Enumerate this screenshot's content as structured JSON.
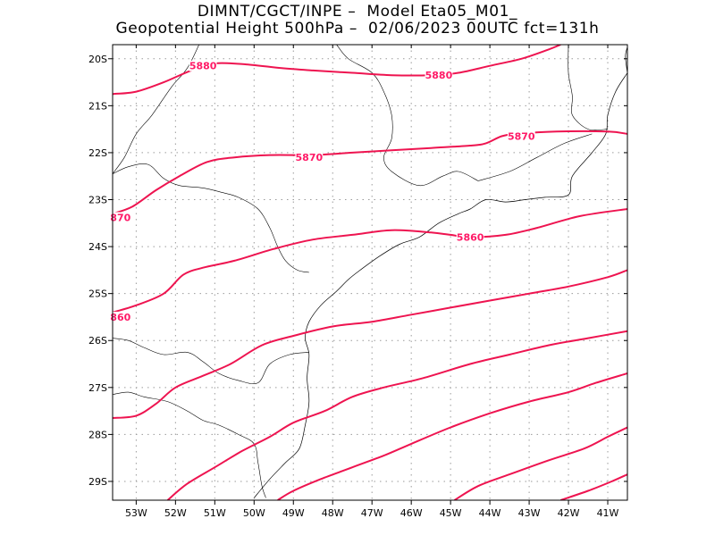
{
  "header": {
    "line1": "DIMNT/CGCT/INPE –  Model Eta05_M01_",
    "line2": "Geopotential Height 500hPa –  02/06/2023 00UTC fct=131h"
  },
  "colors": {
    "contour": "#ee1450",
    "label": "#ff1966",
    "coast": "#000000",
    "grid": "#9a9a9a"
  },
  "chart_data": {
    "type": "contour-map",
    "variable": "Geopotential Height",
    "level": "500hPa",
    "lon_range": [
      -53.6,
      -40.5
    ],
    "lat_range": [
      -29.4,
      -19.7
    ],
    "grid": true,
    "x_ticks": [
      {
        "value": -53,
        "label": "53W"
      },
      {
        "value": -52,
        "label": "52W"
      },
      {
        "value": -51,
        "label": "51W"
      },
      {
        "value": -50,
        "label": "50W"
      },
      {
        "value": -49,
        "label": "49W"
      },
      {
        "value": -48,
        "label": "48W"
      },
      {
        "value": -47,
        "label": "47W"
      },
      {
        "value": -46,
        "label": "46W"
      },
      {
        "value": -45,
        "label": "45W"
      },
      {
        "value": -44,
        "label": "44W"
      },
      {
        "value": -43,
        "label": "43W"
      },
      {
        "value": -42,
        "label": "42W"
      },
      {
        "value": -41,
        "label": "41W"
      }
    ],
    "y_ticks": [
      {
        "value": -20,
        "label": "20S"
      },
      {
        "value": -21,
        "label": "21S"
      },
      {
        "value": -22,
        "label": "22S"
      },
      {
        "value": -23,
        "label": "23S"
      },
      {
        "value": -24,
        "label": "24S"
      },
      {
        "value": -25,
        "label": "25S"
      },
      {
        "value": -26,
        "label": "26S"
      },
      {
        "value": -27,
        "label": "27S"
      },
      {
        "value": -28,
        "label": "28S"
      },
      {
        "value": -29,
        "label": "29S"
      }
    ],
    "contour_labels": [
      {
        "text": "5880",
        "lon": -51.3,
        "lat": -20.15
      },
      {
        "text": "5880",
        "lon": -45.3,
        "lat": -20.35
      },
      {
        "text": "5870",
        "lon": -43.2,
        "lat": -21.65
      },
      {
        "text": "5870",
        "lon": -48.6,
        "lat": -22.1
      },
      {
        "text": "870",
        "lon": -53.4,
        "lat": -23.38
      },
      {
        "text": "5860",
        "lon": -44.5,
        "lat": -23.8
      },
      {
        "text": "860",
        "lon": -53.4,
        "lat": -25.5
      }
    ],
    "contours": [
      [
        [
          -53.6,
          -20.75
        ],
        [
          -53.0,
          -20.7
        ],
        [
          -52.3,
          -20.5
        ],
        [
          -51.6,
          -20.25
        ],
        [
          -51.0,
          -20.1
        ],
        [
          -50.2,
          -20.12
        ],
        [
          -49.3,
          -20.2
        ],
        [
          -48.5,
          -20.25
        ],
        [
          -47.5,
          -20.3
        ],
        [
          -46.5,
          -20.35
        ],
        [
          -45.5,
          -20.35
        ],
        [
          -44.8,
          -20.3
        ],
        [
          -44.0,
          -20.15
        ],
        [
          -43.2,
          -20.0
        ],
        [
          -42.5,
          -19.8
        ],
        [
          -42.2,
          -19.7
        ]
      ],
      [
        [
          -53.6,
          -23.3
        ],
        [
          -53.1,
          -23.15
        ],
        [
          -52.5,
          -22.8
        ],
        [
          -51.9,
          -22.5
        ],
        [
          -51.2,
          -22.2
        ],
        [
          -50.5,
          -22.1
        ],
        [
          -49.6,
          -22.05
        ],
        [
          -48.5,
          -22.05
        ],
        [
          -47.5,
          -22.0
        ],
        [
          -46.5,
          -21.95
        ],
        [
          -45.5,
          -21.9
        ],
        [
          -44.5,
          -21.85
        ],
        [
          -44.1,
          -21.8
        ],
        [
          -43.7,
          -21.65
        ],
        [
          -43.3,
          -21.6
        ],
        [
          -42.3,
          -21.55
        ],
        [
          -41.0,
          -21.55
        ],
        [
          -40.5,
          -21.6
        ]
      ],
      [
        [
          -53.6,
          -25.4
        ],
        [
          -53.0,
          -25.25
        ],
        [
          -52.3,
          -25.0
        ],
        [
          -51.8,
          -24.6
        ],
        [
          -51.3,
          -24.45
        ],
        [
          -50.5,
          -24.3
        ],
        [
          -49.5,
          -24.05
        ],
        [
          -48.5,
          -23.85
        ],
        [
          -47.5,
          -23.75
        ],
        [
          -46.5,
          -23.65
        ],
        [
          -45.5,
          -23.7
        ],
        [
          -45.0,
          -23.75
        ],
        [
          -44.5,
          -23.8
        ],
        [
          -43.6,
          -23.75
        ],
        [
          -42.8,
          -23.6
        ],
        [
          -41.7,
          -23.35
        ],
        [
          -40.5,
          -23.2
        ]
      ],
      [
        [
          -53.6,
          -27.65
        ],
        [
          -53.0,
          -27.6
        ],
        [
          -52.5,
          -27.35
        ],
        [
          -52.0,
          -27.0
        ],
        [
          -51.3,
          -26.75
        ],
        [
          -50.6,
          -26.5
        ],
        [
          -49.8,
          -26.1
        ],
        [
          -49.0,
          -25.9
        ],
        [
          -48.0,
          -25.7
        ],
        [
          -47.0,
          -25.6
        ],
        [
          -46.0,
          -25.45
        ],
        [
          -45.0,
          -25.3
        ],
        [
          -44.0,
          -25.15
        ],
        [
          -43.0,
          -25.0
        ],
        [
          -42.0,
          -24.85
        ],
        [
          -41.0,
          -24.65
        ],
        [
          -40.5,
          -24.5
        ]
      ],
      [
        [
          -52.2,
          -29.4
        ],
        [
          -51.7,
          -29.05
        ],
        [
          -51.0,
          -28.7
        ],
        [
          -50.3,
          -28.35
        ],
        [
          -49.6,
          -28.05
        ],
        [
          -49.0,
          -27.75
        ],
        [
          -48.2,
          -27.5
        ],
        [
          -47.5,
          -27.2
        ],
        [
          -46.7,
          -27.0
        ],
        [
          -45.7,
          -26.8
        ],
        [
          -44.5,
          -26.5
        ],
        [
          -43.5,
          -26.3
        ],
        [
          -42.5,
          -26.1
        ],
        [
          -41.5,
          -25.95
        ],
        [
          -40.5,
          -25.8
        ]
      ],
      [
        [
          -49.4,
          -29.4
        ],
        [
          -49.0,
          -29.2
        ],
        [
          -48.3,
          -28.95
        ],
        [
          -47.5,
          -28.7
        ],
        [
          -46.7,
          -28.45
        ],
        [
          -46.0,
          -28.2
        ],
        [
          -45.0,
          -27.85
        ],
        [
          -44.0,
          -27.55
        ],
        [
          -43.0,
          -27.3
        ],
        [
          -42.0,
          -27.1
        ],
        [
          -41.3,
          -26.9
        ],
        [
          -40.5,
          -26.7
        ]
      ],
      [
        [
          -44.9,
          -29.4
        ],
        [
          -44.3,
          -29.1
        ],
        [
          -43.5,
          -28.85
        ],
        [
          -42.5,
          -28.55
        ],
        [
          -41.6,
          -28.3
        ],
        [
          -41.0,
          -28.05
        ],
        [
          -40.5,
          -27.85
        ]
      ],
      [
        [
          -42.2,
          -29.4
        ],
        [
          -41.5,
          -29.2
        ],
        [
          -40.9,
          -29.0
        ],
        [
          -40.5,
          -28.85
        ]
      ]
    ],
    "borders": [
      [
        [
          -53.6,
          -22.45
        ],
        [
          -53.2,
          -22.3
        ],
        [
          -52.7,
          -22.25
        ],
        [
          -52.3,
          -22.55
        ],
        [
          -51.9,
          -22.7
        ],
        [
          -51.3,
          -22.75
        ],
        [
          -50.8,
          -22.85
        ],
        [
          -50.4,
          -22.95
        ],
        [
          -49.9,
          -23.2
        ],
        [
          -49.6,
          -23.6
        ],
        [
          -49.4,
          -24.0
        ],
        [
          -49.2,
          -24.3
        ],
        [
          -48.9,
          -24.5
        ],
        [
          -48.6,
          -24.55
        ]
      ],
      [
        [
          -53.6,
          -25.95
        ],
        [
          -53.2,
          -26.0
        ],
        [
          -52.8,
          -26.15
        ],
        [
          -52.3,
          -26.3
        ],
        [
          -51.7,
          -26.25
        ],
        [
          -51.3,
          -26.45
        ],
        [
          -50.9,
          -26.7
        ],
        [
          -50.4,
          -26.85
        ],
        [
          -49.9,
          -26.9
        ],
        [
          -49.6,
          -26.5
        ],
        [
          -49.1,
          -26.3
        ],
        [
          -48.6,
          -26.25
        ]
      ],
      [
        [
          -53.6,
          -27.15
        ],
        [
          -53.2,
          -27.1
        ],
        [
          -52.8,
          -27.2
        ],
        [
          -52.2,
          -27.3
        ],
        [
          -51.7,
          -27.5
        ],
        [
          -51.3,
          -27.7
        ],
        [
          -50.9,
          -27.8
        ],
        [
          -50.4,
          -28.0
        ],
        [
          -50.0,
          -28.2
        ],
        [
          -49.9,
          -28.6
        ],
        [
          -49.8,
          -29.1
        ],
        [
          -49.7,
          -29.35
        ]
      ],
      [
        [
          -51.4,
          -19.7
        ],
        [
          -51.7,
          -20.2
        ],
        [
          -52.1,
          -20.6
        ],
        [
          -52.6,
          -21.2
        ],
        [
          -53.0,
          -21.6
        ],
        [
          -53.3,
          -22.1
        ],
        [
          -53.6,
          -22.45
        ]
      ],
      [
        [
          -47.9,
          -19.7
        ],
        [
          -47.6,
          -20.0
        ],
        [
          -47.0,
          -20.3
        ],
        [
          -46.7,
          -20.7
        ],
        [
          -46.5,
          -21.2
        ],
        [
          -46.5,
          -21.7
        ],
        [
          -46.7,
          -22.1
        ],
        [
          -46.5,
          -22.4
        ],
        [
          -45.8,
          -22.7
        ],
        [
          -45.2,
          -22.5
        ],
        [
          -44.8,
          -22.4
        ],
        [
          -44.3,
          -22.6
        ]
      ],
      [
        [
          -42.0,
          -19.7
        ],
        [
          -42.0,
          -20.3
        ],
        [
          -41.9,
          -20.8
        ],
        [
          -41.9,
          -21.2
        ],
        [
          -41.5,
          -21.5
        ],
        [
          -41.0,
          -21.5
        ]
      ],
      [
        [
          -44.3,
          -22.6
        ],
        [
          -43.5,
          -22.4
        ],
        [
          -42.8,
          -22.1
        ],
        [
          -42.1,
          -21.8
        ],
        [
          -41.4,
          -21.6
        ]
      ]
    ],
    "coastline": [
      [
        [
          -40.5,
          -20.3
        ],
        [
          -40.8,
          -20.7
        ],
        [
          -41.0,
          -21.2
        ],
        [
          -41.05,
          -21.6
        ],
        [
          -41.4,
          -22.0
        ],
        [
          -41.9,
          -22.5
        ],
        [
          -42.0,
          -22.9
        ],
        [
          -42.6,
          -22.95
        ],
        [
          -43.1,
          -23.0
        ],
        [
          -43.6,
          -23.05
        ],
        [
          -44.1,
          -23.0
        ],
        [
          -44.5,
          -23.2
        ],
        [
          -44.8,
          -23.3
        ],
        [
          -45.3,
          -23.5
        ],
        [
          -45.8,
          -23.8
        ],
        [
          -46.3,
          -23.95
        ],
        [
          -46.8,
          -24.2
        ],
        [
          -47.3,
          -24.5
        ],
        [
          -47.6,
          -24.7
        ],
        [
          -47.9,
          -24.95
        ],
        [
          -48.3,
          -25.25
        ],
        [
          -48.6,
          -25.6
        ],
        [
          -48.7,
          -25.95
        ],
        [
          -48.6,
          -26.3
        ],
        [
          -48.65,
          -26.8
        ],
        [
          -48.6,
          -27.3
        ],
        [
          -48.7,
          -27.8
        ],
        [
          -48.85,
          -28.3
        ],
        [
          -49.2,
          -28.6
        ],
        [
          -49.6,
          -28.95
        ],
        [
          -50.0,
          -29.35
        ]
      ],
      [
        [
          -40.5,
          -19.75
        ],
        [
          -40.55,
          -19.95
        ],
        [
          -40.5,
          -20.3
        ]
      ]
    ]
  }
}
